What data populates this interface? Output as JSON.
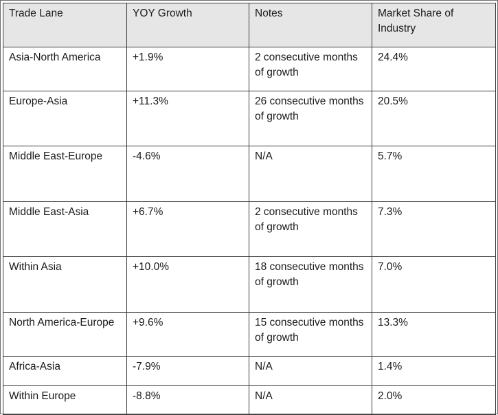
{
  "table": {
    "headers": [
      "Trade Lane",
      "YOY Growth",
      "Notes",
      "Market Share of Industry"
    ],
    "rows": [
      {
        "lane": "Asia-North America",
        "growth": "+1.9%",
        "notes": "2 consecutive months of growth",
        "share": "24.4%"
      },
      {
        "lane": "Europe-Asia",
        "growth": "+11.3%",
        "notes": "26 consecutive months of growth",
        "share": "20.5%"
      },
      {
        "lane": "Middle East-Europe",
        "growth": "-4.6%",
        "notes": "N/A",
        "share": "5.7%"
      },
      {
        "lane": "Middle East-Asia",
        "growth": "+6.7%",
        "notes": "2 consecutive months of growth",
        "share": "7.3%"
      },
      {
        "lane": "Within Asia",
        "growth": "+10.0%",
        "notes": "18 consecutive months of growth",
        "share": "7.0%"
      },
      {
        "lane": "North America-Europe",
        "growth": "+9.6%",
        "notes": "15 consecutive months of growth",
        "share": "13.3%"
      },
      {
        "lane": "Africa-Asia",
        "growth": "-7.9%",
        "notes": "N/A",
        "share": "1.4%"
      },
      {
        "lane": "Within Europe",
        "growth": "-8.8%",
        "notes": "N/A",
        "share": "2.0%"
      }
    ]
  },
  "colors": {
    "header_background": "#e6e6e6",
    "border": "#3a3a3a",
    "text": "#1a1a1a"
  }
}
